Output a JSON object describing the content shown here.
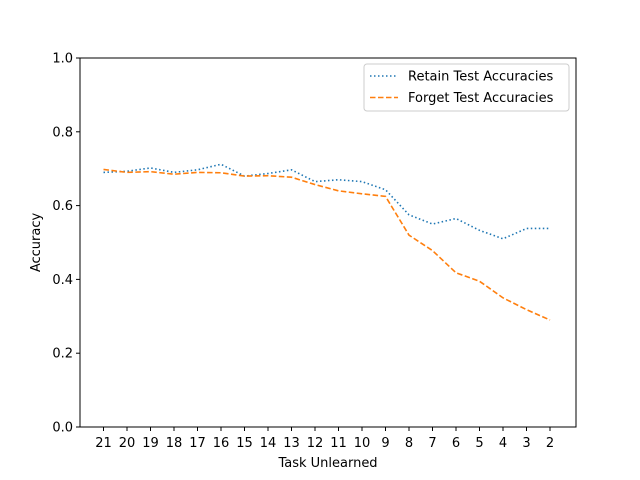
{
  "chart_data": {
    "type": "line",
    "title": "",
    "xlabel": "Task Unlearned",
    "ylabel": "Accuracy",
    "ylim": [
      0.0,
      1.0
    ],
    "yticks": [
      "0.0",
      "0.2",
      "0.4",
      "0.6",
      "0.8",
      "1.0"
    ],
    "categories": [
      "21",
      "20",
      "19",
      "18",
      "17",
      "16",
      "15",
      "14",
      "13",
      "12",
      "11",
      "10",
      "9",
      "8",
      "7",
      "6",
      "5",
      "4",
      "3",
      "2"
    ],
    "grid": false,
    "legend_position": "top-right",
    "series": [
      {
        "name": "Retain Test Accuracies",
        "color": "#1f77b4",
        "style": "dotted",
        "values": [
          0.69,
          0.693,
          0.702,
          0.69,
          0.697,
          0.712,
          0.68,
          0.687,
          0.697,
          0.665,
          0.67,
          0.665,
          0.643,
          0.575,
          0.55,
          0.565,
          0.533,
          0.51,
          0.538,
          0.538
        ]
      },
      {
        "name": "Forget Test Accuracies",
        "color": "#ff7f0e",
        "style": "dashed",
        "values": [
          0.698,
          0.69,
          0.692,
          0.685,
          0.69,
          0.689,
          0.68,
          0.681,
          0.677,
          0.657,
          0.64,
          0.632,
          0.625,
          0.52,
          0.478,
          0.418,
          0.395,
          0.35,
          0.318,
          0.29
        ]
      }
    ]
  }
}
